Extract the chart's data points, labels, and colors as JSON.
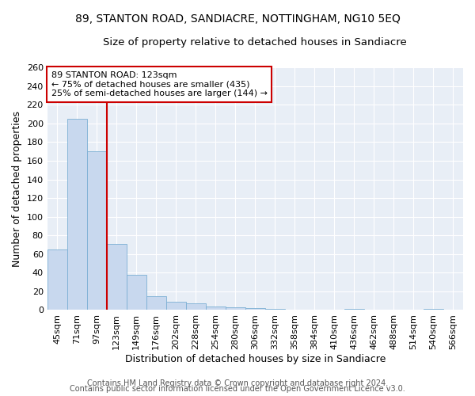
{
  "title1": "89, STANTON ROAD, SANDIACRE, NOTTINGHAM, NG10 5EQ",
  "title2": "Size of property relative to detached houses in Sandiacre",
  "xlabel": "Distribution of detached houses by size in Sandiacre",
  "ylabel": "Number of detached properties",
  "categories": [
    "45sqm",
    "71sqm",
    "97sqm",
    "123sqm",
    "149sqm",
    "176sqm",
    "202sqm",
    "228sqm",
    "254sqm",
    "280sqm",
    "306sqm",
    "332sqm",
    "358sqm",
    "384sqm",
    "410sqm",
    "436sqm",
    "462sqm",
    "488sqm",
    "514sqm",
    "540sqm",
    "566sqm"
  ],
  "values": [
    65,
    205,
    170,
    71,
    38,
    15,
    9,
    7,
    4,
    3,
    2,
    1,
    0,
    0,
    0,
    1,
    0,
    0,
    0,
    1,
    0
  ],
  "bar_color": "#c8d8ee",
  "bar_edge_color": "#7bafd4",
  "annotation_line1": "89 STANTON ROAD: 123sqm",
  "annotation_line2": "← 75% of detached houses are smaller (435)",
  "annotation_line3": "25% of semi-detached houses are larger (144) →",
  "annotation_box_color": "#ffffff",
  "annotation_box_edge_color": "#cc0000",
  "red_line_color": "#cc0000",
  "ylim": [
    0,
    260
  ],
  "yticks": [
    0,
    20,
    40,
    60,
    80,
    100,
    120,
    140,
    160,
    180,
    200,
    220,
    240,
    260
  ],
  "footer1": "Contains HM Land Registry data © Crown copyright and database right 2024.",
  "footer2": "Contains public sector information licensed under the Open Government Licence v3.0.",
  "fig_background": "#ffffff",
  "plot_background": "#e8eef6",
  "grid_color": "#ffffff",
  "title1_fontsize": 10,
  "title2_fontsize": 9.5,
  "axis_label_fontsize": 9,
  "tick_fontsize": 8,
  "footer_fontsize": 7,
  "annotation_fontsize": 8
}
